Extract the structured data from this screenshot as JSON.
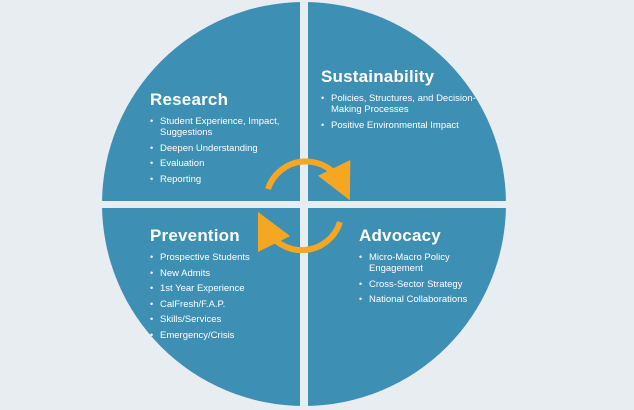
{
  "colors": {
    "circle": "#3d8fb4",
    "divider": "#e8edf1",
    "arrow": "#f5a623",
    "background": "#e8edf1",
    "text": "#ffffff"
  },
  "icons": [
    "cycle-arrow-top-icon",
    "cycle-arrow-bottom-icon"
  ],
  "quadrants": {
    "research": {
      "title": "Research",
      "items": [
        "Student Experience, Impact, Suggestions",
        "Deepen Understanding",
        "Evaluation",
        "Reporting"
      ]
    },
    "sustainability": {
      "title": "Sustainability",
      "items": [
        "Policies, Structures, and Decision-Making Processes",
        "Positive Environmental Impact"
      ]
    },
    "prevention": {
      "title": "Prevention",
      "items": [
        "Prospective Students",
        "New Admits",
        "1st Year Experience",
        "CalFresh/F.A.P.",
        "Skills/Services",
        "Emergency/Crisis"
      ]
    },
    "advocacy": {
      "title": "Advocacy",
      "items": [
        "Micro-Macro Policy Engagement",
        "Cross-Sector Strategy",
        "National Collaborations"
      ]
    }
  }
}
